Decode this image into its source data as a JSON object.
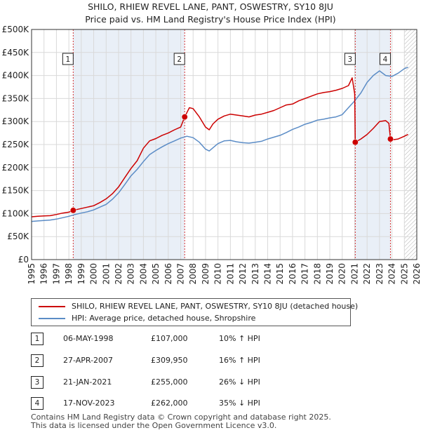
{
  "chart_data": {
    "type": "line",
    "title": "SHILO, RHIEW REVEL LANE, PANT, OSWESTRY, SY10 8JU",
    "subtitle": "Price paid vs. HM Land Registry's House Price Index (HPI)",
    "xlabel": "",
    "ylabel": "",
    "xlim": [
      1995,
      2026
    ],
    "ylim": [
      0,
      500000
    ],
    "x_ticks": [
      1995,
      1996,
      1997,
      1998,
      1999,
      2000,
      2001,
      2002,
      2003,
      2004,
      2005,
      2006,
      2007,
      2008,
      2009,
      2010,
      2011,
      2012,
      2013,
      2014,
      2015,
      2016,
      2017,
      2018,
      2019,
      2020,
      2021,
      2022,
      2023,
      2024,
      2025,
      2026
    ],
    "y_ticks": [
      {
        "value": 0,
        "label": "£0"
      },
      {
        "value": 50000,
        "label": "£50K"
      },
      {
        "value": 100000,
        "label": "£100K"
      },
      {
        "value": 150000,
        "label": "£150K"
      },
      {
        "value": 200000,
        "label": "£200K"
      },
      {
        "value": 250000,
        "label": "£250K"
      },
      {
        "value": 300000,
        "label": "£300K"
      },
      {
        "value": 350000,
        "label": "£350K"
      },
      {
        "value": 400000,
        "label": "£400K"
      },
      {
        "value": 450000,
        "label": "£450K"
      },
      {
        "value": 500000,
        "label": "£500K"
      }
    ],
    "grid": true,
    "forecast_start": 2025.0,
    "series": [
      {
        "name": "SHILO, RHIEW REVEL LANE, PANT, OSWESTRY, SY10 8JU (detached house)",
        "color": "#cc0000",
        "x": [
          1995.0,
          1995.5,
          1996.0,
          1996.5,
          1997.0,
          1997.5,
          1998.0,
          1998.35,
          1998.5,
          1999.0,
          1999.5,
          2000.0,
          2000.5,
          2001.0,
          2001.5,
          2002.0,
          2002.5,
          2003.0,
          2003.5,
          2004.0,
          2004.5,
          2005.0,
          2005.5,
          2006.0,
          2006.5,
          2007.0,
          2007.32,
          2007.7,
          2008.0,
          2008.5,
          2009.0,
          2009.3,
          2009.6,
          2010.0,
          2010.5,
          2011.0,
          2011.5,
          2012.0,
          2012.5,
          2013.0,
          2013.5,
          2014.0,
          2014.5,
          2015.0,
          2015.5,
          2016.0,
          2016.5,
          2017.0,
          2017.5,
          2018.0,
          2018.5,
          2019.0,
          2019.5,
          2020.0,
          2020.5,
          2020.8,
          2021.0,
          2021.05,
          2021.5,
          2022.0,
          2022.5,
          2023.0,
          2023.5,
          2023.75,
          2023.88,
          2024.0,
          2024.5,
          2025.0,
          2025.3
        ],
        "y": [
          93000,
          94000,
          95000,
          95500,
          98000,
          101000,
          103000,
          107000,
          108000,
          111000,
          114000,
          117000,
          124000,
          132000,
          143000,
          158000,
          178000,
          198000,
          215000,
          242000,
          258000,
          263000,
          270000,
          275000,
          282000,
          288000,
          309950,
          330000,
          328000,
          310000,
          288000,
          282000,
          295000,
          305000,
          312000,
          316000,
          314000,
          312000,
          310000,
          314000,
          316000,
          320000,
          324000,
          330000,
          336000,
          338000,
          345000,
          350000,
          355000,
          360000,
          363000,
          365000,
          368000,
          372000,
          378000,
          395000,
          360000,
          255000,
          262000,
          272000,
          285000,
          300000,
          302000,
          296000,
          262000,
          260000,
          262000,
          268000,
          272000
        ]
      },
      {
        "name": "HPI: Average price, detached house, Shropshire",
        "color": "#5b8cc6",
        "x": [
          1995.0,
          1995.5,
          1996.0,
          1996.5,
          1997.0,
          1997.5,
          1998.0,
          1998.5,
          1999.0,
          1999.5,
          2000.0,
          2000.5,
          2001.0,
          2001.5,
          2002.0,
          2002.5,
          2003.0,
          2003.5,
          2004.0,
          2004.5,
          2005.0,
          2005.5,
          2006.0,
          2006.5,
          2007.0,
          2007.5,
          2008.0,
          2008.5,
          2009.0,
          2009.3,
          2009.6,
          2010.0,
          2010.5,
          2011.0,
          2011.5,
          2012.0,
          2012.5,
          2013.0,
          2013.5,
          2014.0,
          2014.5,
          2015.0,
          2015.5,
          2016.0,
          2016.5,
          2017.0,
          2017.5,
          2018.0,
          2018.5,
          2019.0,
          2019.5,
          2020.0,
          2020.5,
          2021.0,
          2021.5,
          2022.0,
          2022.5,
          2023.0,
          2023.5,
          2024.0,
          2024.5,
          2025.0,
          2025.3
        ],
        "y": [
          83000,
          84000,
          85000,
          86000,
          88000,
          91000,
          94000,
          98000,
          101000,
          104000,
          108000,
          114000,
          120000,
          131000,
          145000,
          163000,
          182000,
          196000,
          213000,
          228000,
          237000,
          245000,
          252000,
          258000,
          264000,
          268000,
          265000,
          255000,
          240000,
          236000,
          243000,
          252000,
          258000,
          259000,
          256000,
          254000,
          253000,
          255000,
          257000,
          262000,
          266000,
          270000,
          276000,
          283000,
          288000,
          294000,
          298000,
          303000,
          305000,
          308000,
          310000,
          315000,
          330000,
          345000,
          362000,
          385000,
          400000,
          410000,
          400000,
          398000,
          405000,
          415000,
          418000
        ]
      }
    ],
    "sales": [
      {
        "num": "1",
        "x": 1998.35,
        "price": 107000
      },
      {
        "num": "2",
        "x": 2007.32,
        "price": 309950
      },
      {
        "num": "3",
        "x": 2021.05,
        "price": 255000
      },
      {
        "num": "4",
        "x": 2023.88,
        "price": 262000
      }
    ],
    "shaded_spans": [
      {
        "from": 1998.35,
        "to": 2007.32
      },
      {
        "from": 2021.05,
        "to": 2023.88
      }
    ]
  },
  "legend": {
    "items": [
      {
        "label": "SHILO, RHIEW REVEL LANE, PANT, OSWESTRY, SY10 8JU (detached house)",
        "color": "#cc0000"
      },
      {
        "label": "HPI: Average price, detached house, Shropshire",
        "color": "#5b8cc6"
      }
    ]
  },
  "sales_table": [
    {
      "num": "1",
      "date": "06-MAY-1998",
      "price": "£107,000",
      "hpi": "10% ↑ HPI"
    },
    {
      "num": "2",
      "date": "27-APR-2007",
      "price": "£309,950",
      "hpi": "16% ↑ HPI"
    },
    {
      "num": "3",
      "date": "21-JAN-2021",
      "price": "£255,000",
      "hpi": "26% ↓ HPI"
    },
    {
      "num": "4",
      "date": "17-NOV-2023",
      "price": "£262,000",
      "hpi": "35% ↓ HPI"
    }
  ],
  "footer": {
    "line1": "Contains HM Land Registry data © Crown copyright and database right 2025.",
    "line2": "This data is licensed under the Open Government Licence v3.0."
  }
}
